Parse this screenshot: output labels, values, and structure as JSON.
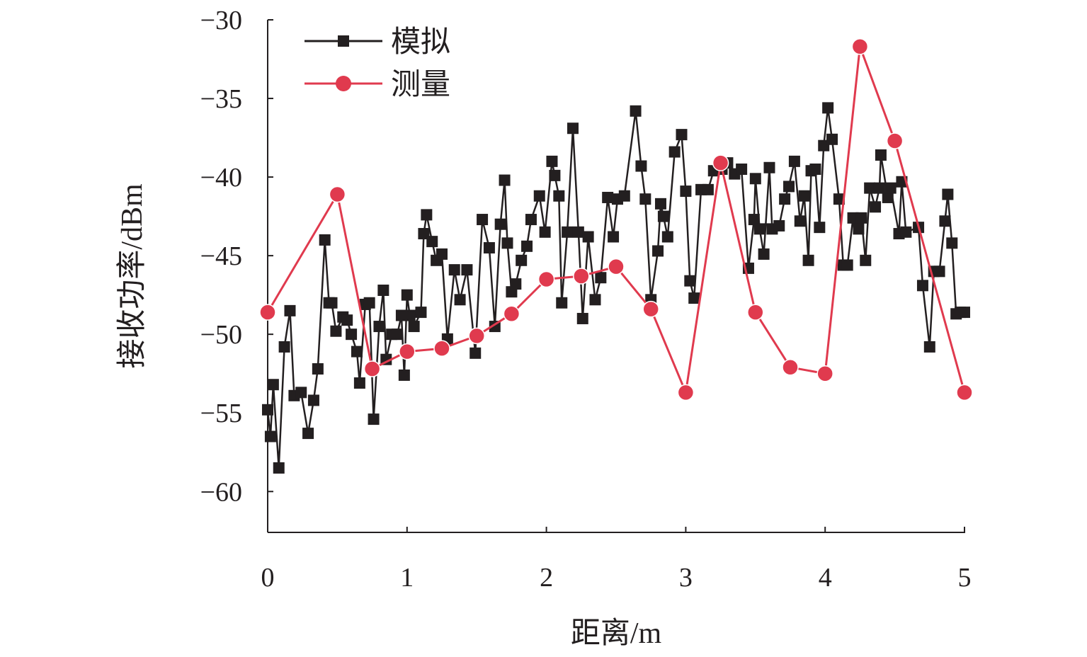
{
  "chart_data": {
    "type": "line",
    "title": "",
    "xlabel": "距离/m",
    "ylabel": "接收功率/dBm",
    "xlim": [
      0,
      5
    ],
    "ylim": [
      -62.6,
      -30
    ],
    "x_ticks": [
      "0",
      "1",
      "2",
      "3",
      "4",
      "5"
    ],
    "y_ticks": [
      "−30",
      "−35",
      "−40",
      "−45",
      "−50",
      "−55",
      "−60"
    ],
    "x_tick_values": [
      0,
      1,
      2,
      3,
      4,
      5
    ],
    "y_tick_values": [
      -30,
      -35,
      -40,
      -45,
      -50,
      -55,
      -60
    ],
    "legend_position": "top-left",
    "series": [
      {
        "name": "模拟",
        "color": "#231f20",
        "marker": "square",
        "points": [
          [
            0.0,
            -54.8
          ],
          [
            0.02,
            -56.5
          ],
          [
            0.04,
            -53.2
          ],
          [
            0.08,
            -58.5
          ],
          [
            0.12,
            -50.8
          ],
          [
            0.16,
            -48.5
          ],
          [
            0.19,
            -53.9
          ],
          [
            0.24,
            -53.7
          ],
          [
            0.29,
            -56.3
          ],
          [
            0.33,
            -54.2
          ],
          [
            0.36,
            -52.2
          ],
          [
            0.41,
            -44.0
          ],
          [
            0.44,
            -48.0
          ],
          [
            0.46,
            -48.0
          ],
          [
            0.49,
            -49.8
          ],
          [
            0.54,
            -48.9
          ],
          [
            0.57,
            -49.1
          ],
          [
            0.6,
            -50.0
          ],
          [
            0.64,
            -51.1
          ],
          [
            0.66,
            -53.1
          ],
          [
            0.7,
            -48.1
          ],
          [
            0.73,
            -48.0
          ],
          [
            0.76,
            -55.4
          ],
          [
            0.8,
            -49.5
          ],
          [
            0.83,
            -47.2
          ],
          [
            0.85,
            -51.6
          ],
          [
            0.89,
            -50.0
          ],
          [
            0.93,
            -50.0
          ],
          [
            0.96,
            -48.8
          ],
          [
            0.98,
            -52.6
          ],
          [
            1.0,
            -47.5
          ],
          [
            1.02,
            -48.8
          ],
          [
            1.05,
            -49.5
          ],
          [
            1.1,
            -48.6
          ],
          [
            1.12,
            -43.6
          ],
          [
            1.14,
            -42.4
          ],
          [
            1.18,
            -44.1
          ],
          [
            1.21,
            -45.3
          ],
          [
            1.25,
            -44.9
          ],
          [
            1.29,
            -50.3
          ],
          [
            1.34,
            -45.9
          ],
          [
            1.38,
            -47.8
          ],
          [
            1.43,
            -45.9
          ],
          [
            1.49,
            -51.2
          ],
          [
            1.54,
            -42.7
          ],
          [
            1.59,
            -44.5
          ],
          [
            1.63,
            -49.5
          ],
          [
            1.67,
            -43.0
          ],
          [
            1.7,
            -40.2
          ],
          [
            1.72,
            -44.2
          ],
          [
            1.75,
            -47.3
          ],
          [
            1.78,
            -46.8
          ],
          [
            1.82,
            -45.3
          ],
          [
            1.86,
            -44.4
          ],
          [
            1.89,
            -42.7
          ],
          [
            1.95,
            -41.2
          ],
          [
            1.99,
            -43.5
          ],
          [
            2.04,
            -39.0
          ],
          [
            2.06,
            -39.9
          ],
          [
            2.09,
            -41.2
          ],
          [
            2.11,
            -48.0
          ],
          [
            2.15,
            -43.5
          ],
          [
            2.19,
            -36.9
          ],
          [
            2.23,
            -43.5
          ],
          [
            2.26,
            -49.0
          ],
          [
            2.3,
            -43.8
          ],
          [
            2.35,
            -47.8
          ],
          [
            2.39,
            -46.4
          ],
          [
            2.44,
            -41.3
          ],
          [
            2.48,
            -43.8
          ],
          [
            2.51,
            -41.4
          ],
          [
            2.56,
            -41.2
          ],
          [
            2.64,
            -35.8
          ],
          [
            2.68,
            -39.3
          ],
          [
            2.71,
            -41.4
          ],
          [
            2.75,
            -47.8
          ],
          [
            2.8,
            -44.7
          ],
          [
            2.82,
            -41.7
          ],
          [
            2.84,
            -42.5
          ],
          [
            2.87,
            -43.8
          ],
          [
            2.92,
            -38.4
          ],
          [
            2.97,
            -37.3
          ],
          [
            3.0,
            -40.9
          ],
          [
            3.03,
            -46.6
          ],
          [
            3.06,
            -47.7
          ],
          [
            3.11,
            -40.8
          ],
          [
            3.16,
            -40.8
          ],
          [
            3.2,
            -39.6
          ],
          [
            3.26,
            -39.5
          ],
          [
            3.3,
            -39.1
          ],
          [
            3.35,
            -39.8
          ],
          [
            3.4,
            -39.5
          ],
          [
            3.45,
            -45.8
          ],
          [
            3.49,
            -42.7
          ],
          [
            3.5,
            -40.1
          ],
          [
            3.53,
            -43.3
          ],
          [
            3.56,
            -44.9
          ],
          [
            3.6,
            -39.4
          ],
          [
            3.62,
            -43.3
          ],
          [
            3.67,
            -43.1
          ],
          [
            3.71,
            -41.4
          ],
          [
            3.74,
            -40.6
          ],
          [
            3.78,
            -39.0
          ],
          [
            3.82,
            -42.8
          ],
          [
            3.85,
            -41.2
          ],
          [
            3.88,
            -45.3
          ],
          [
            3.9,
            -39.6
          ],
          [
            3.93,
            -39.5
          ],
          [
            3.96,
            -43.2
          ],
          [
            3.99,
            -38.0
          ],
          [
            4.02,
            -35.6
          ],
          [
            4.05,
            -37.6
          ],
          [
            4.1,
            -41.4
          ],
          [
            4.13,
            -45.6
          ],
          [
            4.16,
            -45.6
          ],
          [
            4.2,
            -42.6
          ],
          [
            4.24,
            -43.3
          ],
          [
            4.26,
            -42.6
          ],
          [
            4.29,
            -45.3
          ],
          [
            4.32,
            -40.7
          ],
          [
            4.36,
            -41.9
          ],
          [
            4.39,
            -40.7
          ],
          [
            4.4,
            -38.6
          ],
          [
            4.45,
            -41.3
          ],
          [
            4.47,
            -40.7
          ],
          [
            4.53,
            -43.6
          ],
          [
            4.55,
            -40.3
          ],
          [
            4.58,
            -43.5
          ],
          [
            4.67,
            -43.2
          ],
          [
            4.7,
            -46.9
          ],
          [
            4.75,
            -50.8
          ],
          [
            4.78,
            -46.0
          ],
          [
            4.82,
            -46.0
          ],
          [
            4.86,
            -42.8
          ],
          [
            4.88,
            -41.1
          ],
          [
            4.91,
            -44.2
          ],
          [
            4.94,
            -48.7
          ],
          [
            4.97,
            -48.6
          ],
          [
            5.0,
            -48.6
          ]
        ]
      },
      {
        "name": "测量",
        "color": "#e03a4e",
        "marker": "circle",
        "points": [
          [
            0.0,
            -48.6
          ],
          [
            0.5,
            -41.1
          ],
          [
            0.75,
            -52.2
          ],
          [
            1.0,
            -51.1
          ],
          [
            1.25,
            -50.9
          ],
          [
            1.5,
            -50.1
          ],
          [
            1.75,
            -48.7
          ],
          [
            2.0,
            -46.5
          ],
          [
            2.25,
            -46.3
          ],
          [
            2.5,
            -45.7
          ],
          [
            2.75,
            -48.4
          ],
          [
            3.0,
            -53.7
          ],
          [
            3.25,
            -39.1
          ],
          [
            3.5,
            -48.6
          ],
          [
            3.75,
            -52.1
          ],
          [
            4.0,
            -52.5
          ],
          [
            4.25,
            -31.7
          ],
          [
            4.5,
            -37.7
          ],
          [
            5.0,
            -53.7
          ]
        ]
      }
    ]
  }
}
